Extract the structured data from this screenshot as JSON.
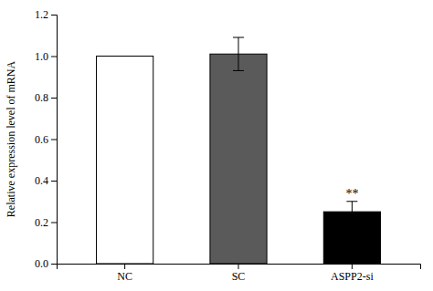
{
  "chart_data": {
    "type": "bar",
    "categories": [
      "NC",
      "SC",
      "ASPP2-si"
    ],
    "values": [
      1.0,
      1.01,
      0.25
    ],
    "errors": [
      0.0,
      0.08,
      0.05
    ],
    "colors": [
      "#ffffff",
      "#5a5a5a",
      "#000000"
    ],
    "ylabel": "Relative expression level of mRNA",
    "ylim": [
      0.0,
      1.2
    ],
    "yticks": [
      {
        "value": 0.0,
        "label": "0.0"
      },
      0.2,
      0.4,
      0.6,
      0.8,
      {
        "value": 1.0,
        "label": "1.0"
      },
      1.2
    ],
    "annotations": [
      {
        "text": "**",
        "category": "ASPP2-si"
      }
    ],
    "grid": false
  }
}
